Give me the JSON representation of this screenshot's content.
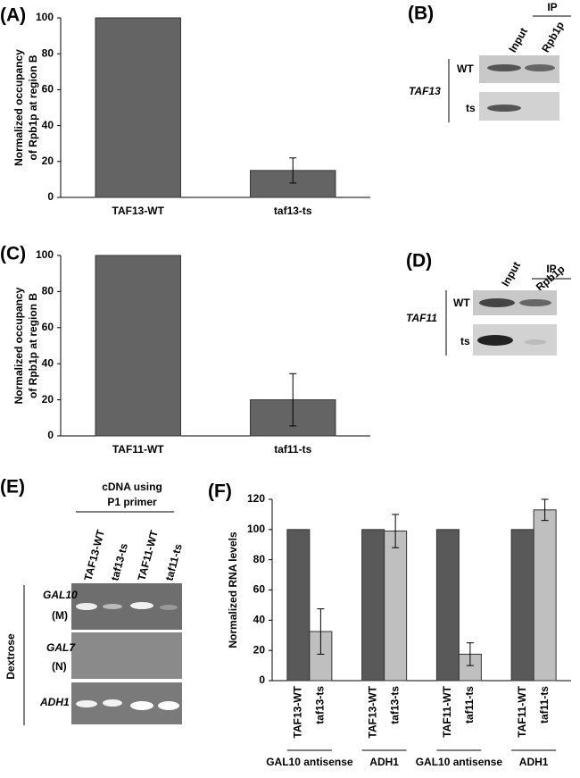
{
  "chart_data": [
    {
      "type": "bar",
      "panel": "(A)",
      "ylabel": [
        "Normalized occupancy",
        "of Rpb1p at region B"
      ],
      "categories": [
        "TAF13-WT",
        "taf13-ts"
      ],
      "values": [
        100,
        15
      ],
      "errors": [
        null,
        7
      ],
      "color": "#646464",
      "ylim": [
        0,
        100
      ],
      "yticks": [
        0,
        20,
        40,
        60,
        80,
        100
      ]
    },
    {
      "type": "bar",
      "panel": "(C)",
      "ylabel": [
        "Normalized occupancy",
        "of Rpb1p at region B"
      ],
      "categories": [
        "TAF11-WT",
        "taf11-ts"
      ],
      "values": [
        100,
        20
      ],
      "errors": [
        null,
        14.5
      ],
      "color": "#646464",
      "ylim": [
        0,
        100
      ],
      "yticks": [
        0,
        20,
        40,
        60,
        80,
        100
      ]
    },
    {
      "type": "grouped-bar",
      "panel": "(F)",
      "ylabel": [
        "Normalized RNA levels"
      ],
      "categories": [
        "GAL10 antisense",
        "ADH1",
        "GAL10 antisense",
        "ADH1"
      ],
      "series": [
        {
          "color": "#595959",
          "values": [
            100,
            100,
            100,
            100
          ],
          "errors": [
            null,
            null,
            null,
            null
          ],
          "labels": [
            "TAF13-WT",
            "TAF13-WT",
            "TAF11-WT",
            "TAF11-WT"
          ]
        },
        {
          "color": "#bfbfbf",
          "values": [
            32.5,
            99,
            17.5,
            113
          ],
          "errors": [
            15,
            11,
            7.5,
            7
          ],
          "labels": [
            "taf13-ts",
            "taf13-ts",
            "taf11-ts",
            "taf11-ts"
          ]
        }
      ],
      "ylim": [
        0,
        120
      ],
      "yticks": [
        0,
        20,
        40,
        60,
        80,
        100,
        120
      ]
    }
  ],
  "blots": [
    {
      "panel": "(B)",
      "lanes": [
        "Input",
        "Rpb1p"
      ],
      "ip": "IP",
      "rows": [
        "WT",
        "ts"
      ],
      "gene": "TAF13"
    },
    {
      "panel": "(D)",
      "lanes": [
        "Input",
        "Rpb1p"
      ],
      "ip": "IP",
      "rows": [
        "WT",
        "ts"
      ],
      "gene": "TAF11"
    }
  ],
  "gel": {
    "panel": "(E)",
    "title": [
      "cDNA using",
      "P1 primer"
    ],
    "lanes": [
      "TAF13-WT",
      "taf13-ts",
      "TAF11-WT",
      "taf11-ts"
    ],
    "rows": [
      [
        "GAL10",
        "(M)"
      ],
      [
        "GAL7",
        "(N)"
      ],
      [
        "ADH1"
      ]
    ],
    "condition": "Dextrose"
  }
}
